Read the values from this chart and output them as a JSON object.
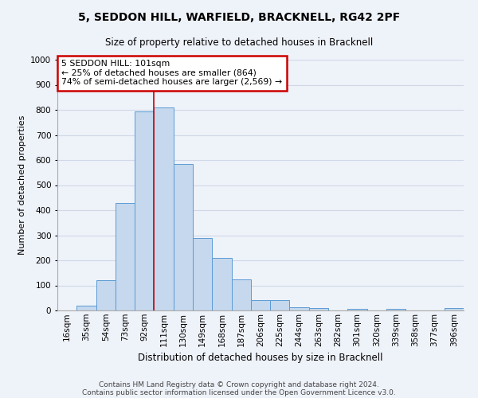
{
  "title": "5, SEDDON HILL, WARFIELD, BRACKNELL, RG42 2PF",
  "subtitle": "Size of property relative to detached houses in Bracknell",
  "xlabel": "Distribution of detached houses by size in Bracknell",
  "ylabel": "Number of detached properties",
  "bar_color": "#c5d8ed",
  "bar_edge_color": "#5b9bd5",
  "categories": [
    "16sqm",
    "35sqm",
    "54sqm",
    "73sqm",
    "92sqm",
    "111sqm",
    "130sqm",
    "149sqm",
    "168sqm",
    "187sqm",
    "206sqm",
    "225sqm",
    "244sqm",
    "263sqm",
    "282sqm",
    "301sqm",
    "320sqm",
    "339sqm",
    "358sqm",
    "377sqm",
    "396sqm"
  ],
  "values": [
    0,
    20,
    120,
    430,
    795,
    810,
    585,
    290,
    210,
    125,
    40,
    40,
    12,
    10,
    0,
    5,
    0,
    5,
    0,
    0,
    8
  ],
  "ylim": [
    0,
    1000
  ],
  "yticks": [
    0,
    100,
    200,
    300,
    400,
    500,
    600,
    700,
    800,
    900,
    1000
  ],
  "annotation_text": "5 SEDDON HILL: 101sqm\n← 25% of detached houses are smaller (864)\n74% of semi-detached houses are larger (2,569) →",
  "marker_bar_index": 5,
  "background_color": "#eef2f9",
  "footer_line1": "Contains HM Land Registry data © Crown copyright and database right 2024.",
  "footer_line2": "Contains public sector information licensed under the Open Government Licence v3.0.",
  "grid_color": "#d0d8e8",
  "annotation_box_facecolor": "#ffffff",
  "annotation_border_color": "#cc0000",
  "red_line_color": "#cc0000",
  "title_fontsize": 10,
  "subtitle_fontsize": 8.5,
  "ylabel_fontsize": 8,
  "xlabel_fontsize": 8.5,
  "tick_fontsize": 7.5,
  "footer_fontsize": 6.5
}
